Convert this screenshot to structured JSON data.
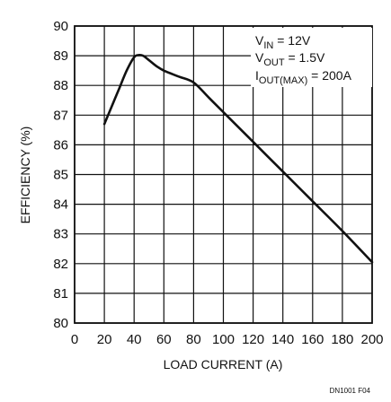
{
  "chart_data": {
    "type": "line",
    "xlabel": "LOAD CURRENT (A)",
    "ylabel": "EFFICIENCY (%)",
    "xlim": [
      0,
      200
    ],
    "ylim": [
      80,
      90
    ],
    "xticks": [
      0,
      20,
      40,
      60,
      80,
      100,
      120,
      140,
      160,
      180,
      200
    ],
    "yticks": [
      80,
      81,
      82,
      83,
      84,
      85,
      86,
      87,
      88,
      89,
      90
    ],
    "grid": true,
    "series": [
      {
        "x": [
          20,
          25,
          30,
          35,
          40,
          43,
          46,
          50,
          55,
          60,
          70,
          80,
          90,
          100,
          120,
          140,
          160,
          180,
          200
        ],
        "y": [
          86.7,
          87.3,
          87.9,
          88.5,
          88.95,
          89.02,
          89.0,
          88.85,
          88.65,
          88.5,
          88.3,
          88.1,
          87.6,
          87.1,
          86.1,
          85.1,
          84.1,
          83.1,
          82.05
        ]
      }
    ],
    "annotation": {
      "line1": {
        "main": "V",
        "sub": "IN",
        "rest": " = 12V"
      },
      "line2": {
        "main": "V",
        "sub": "OUT",
        "rest": " = 1.5V"
      },
      "line3": {
        "main": "I",
        "sub": "OUT(MAX)",
        "rest": " = 200A"
      }
    },
    "figure_id": "DN1001 F04",
    "line_color": "#111111",
    "grid_color": "#111111"
  }
}
